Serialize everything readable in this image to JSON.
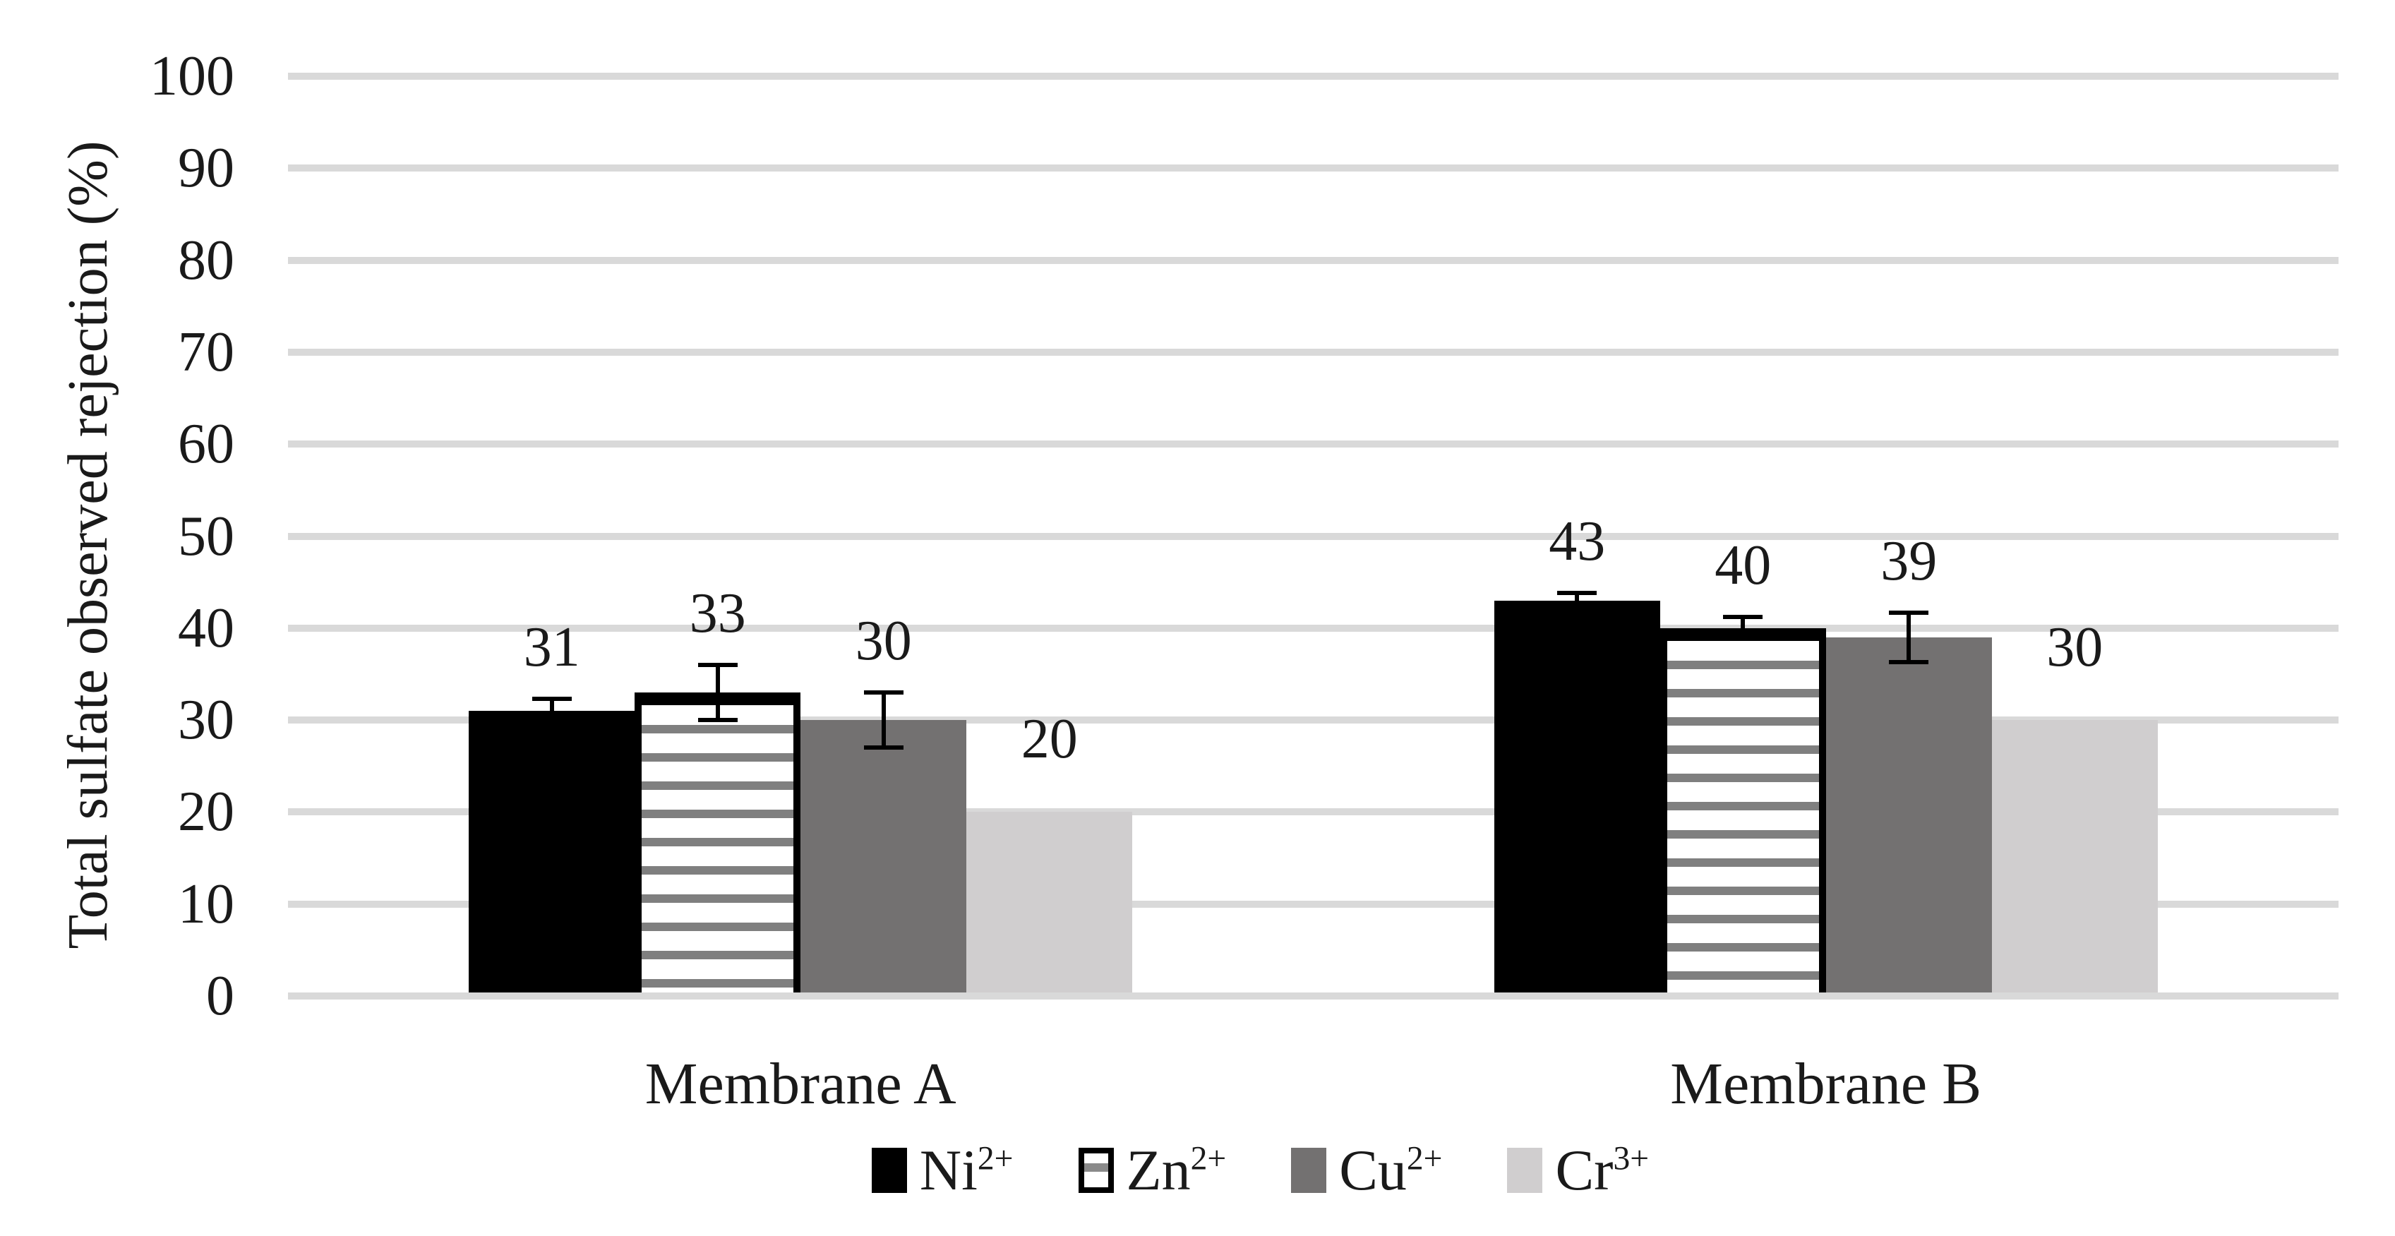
{
  "page": {
    "background": "#ffffff"
  },
  "chart_data": {
    "type": "bar",
    "title": "",
    "xlabel": "",
    "ylabel": "Total sulfate observed rejection (%)",
    "ylim": [
      0,
      100
    ],
    "ytick_step": 10,
    "yticks": [
      0,
      10,
      20,
      30,
      40,
      50,
      60,
      70,
      80,
      90,
      100
    ],
    "categories": [
      "Membrane A",
      "Membrane B"
    ],
    "series": [
      {
        "name": "Ni²⁺",
        "base": "Ni",
        "sup": "2+",
        "style": "black",
        "color": "#000000",
        "values": [
          31,
          43
        ],
        "data_labels": [
          "31",
          "43"
        ],
        "errors": [
          1.3,
          0.8
        ]
      },
      {
        "name": "Zn²⁺",
        "base": "Zn",
        "sup": "2+",
        "style": "striped",
        "color": "#ffffff",
        "stripe_color": "#7f7f7f",
        "border_color": "#000000",
        "values": [
          33,
          40
        ],
        "data_labels": [
          "33",
          "40"
        ],
        "errors": [
          3,
          1.2
        ]
      },
      {
        "name": "Cu²⁺",
        "base": "Cu",
        "sup": "2+",
        "style": "gray",
        "color": "#737171",
        "values": [
          30,
          39
        ],
        "data_labels": [
          "30",
          "39"
        ],
        "errors": [
          3,
          2.7
        ]
      },
      {
        "name": "Cr³⁺",
        "base": "Cr",
        "sup": "3+",
        "style": "lgray",
        "color": "#d0cecf",
        "values": [
          20,
          30
        ],
        "data_labels": [
          "20",
          "30"
        ],
        "errors": [
          null,
          null
        ]
      }
    ],
    "legend": {
      "position": "bottom",
      "items": [
        "Ni²⁺",
        "Zn²⁺",
        "Cu²⁺",
        "Cr³⁺"
      ]
    },
    "grid": {
      "horizontal": true,
      "color": "#d9d9d9"
    },
    "axis_line_color": "#d9d9d9",
    "text_color": "#1a1a1a"
  }
}
